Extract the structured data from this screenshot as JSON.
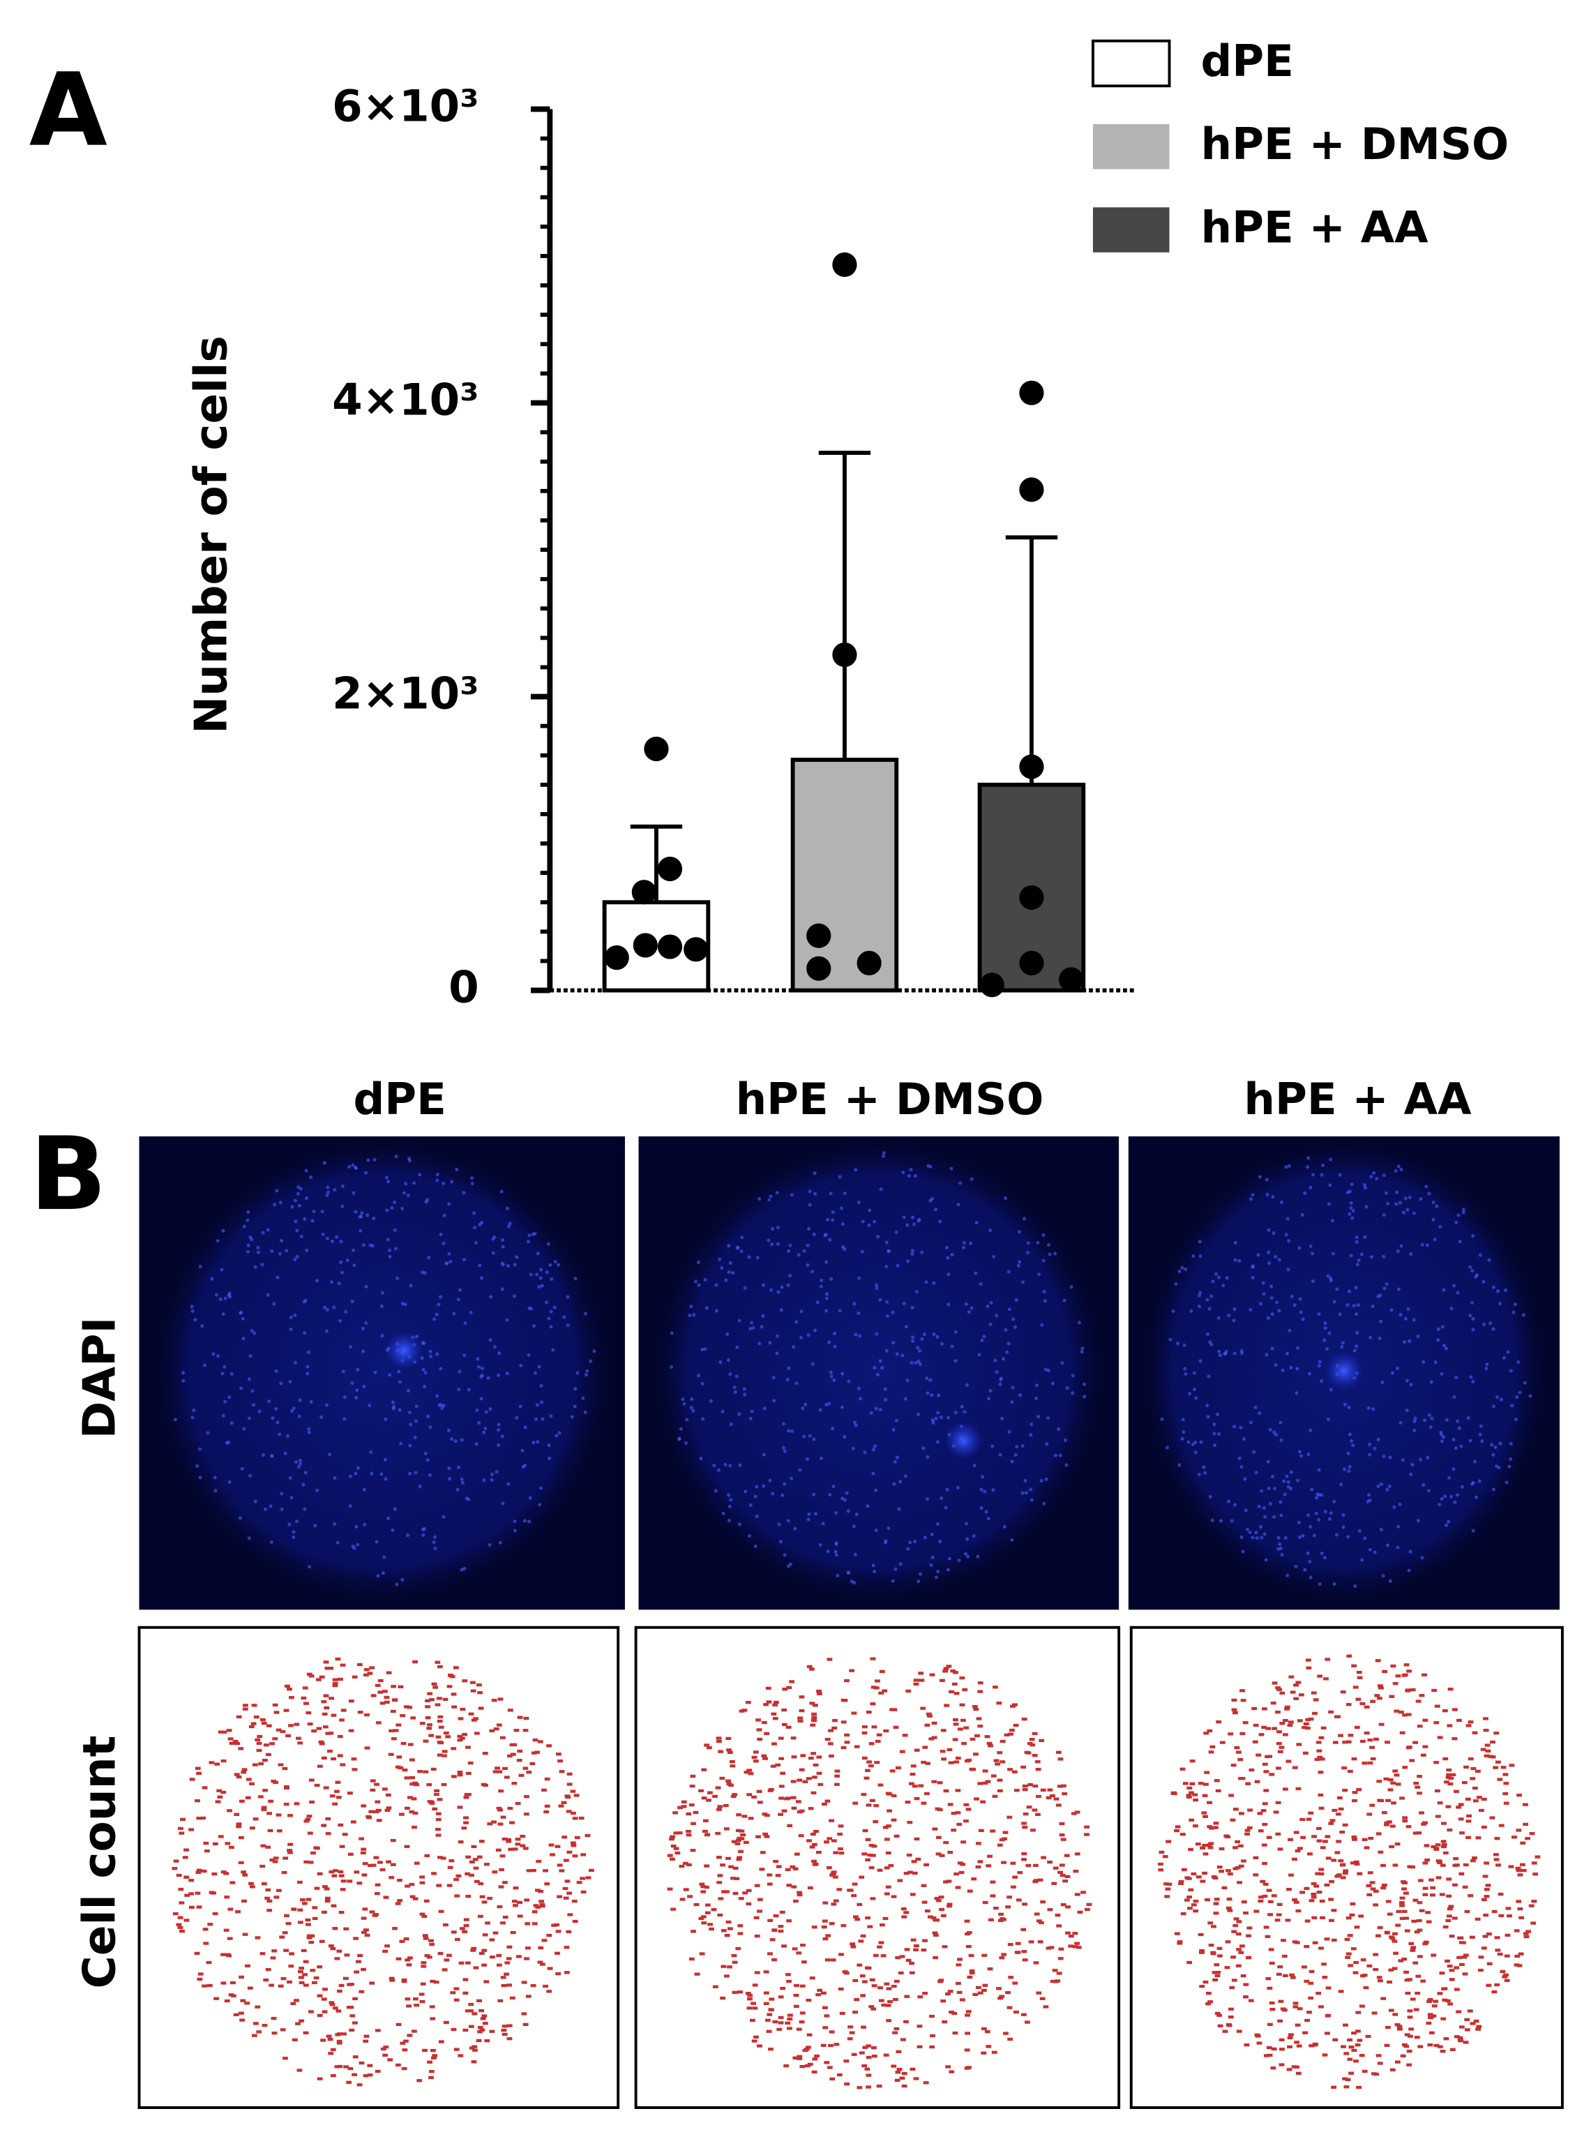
{
  "chart_data": {
    "type": "bar",
    "panel_label": "A",
    "ylabel": "Number of cells",
    "categories": [
      "dPE",
      "hPE + DMSO",
      "hPE + AA"
    ],
    "values": [
      600,
      1570,
      1400
    ],
    "errors": [
      515,
      2090,
      1684
    ],
    "colors": [
      "#ffffff",
      "#b3b3b3",
      "#474747"
    ],
    "points": [
      [
        1644,
        827,
        669,
        223,
        307,
        297,
        279
      ],
      [
        4941,
        2285,
        372,
        149,
        186
      ],
      [
        4068,
        3409,
        1523,
        632,
        37,
        186,
        74
      ]
    ],
    "ylim": [
      0,
      6000
    ],
    "yticks": [
      {
        "value": 0,
        "label": "0"
      },
      {
        "value": 2000,
        "label": "2×10³"
      },
      {
        "value": 4000,
        "label": "4×10³"
      },
      {
        "value": 6000,
        "label": "6×10³"
      }
    ]
  },
  "figure_b": {
    "panel_label": "B",
    "columns": [
      "dPE",
      "hPE + DMSO",
      "hPE + AA"
    ],
    "rows": [
      "DAPI",
      "Cell count"
    ]
  }
}
